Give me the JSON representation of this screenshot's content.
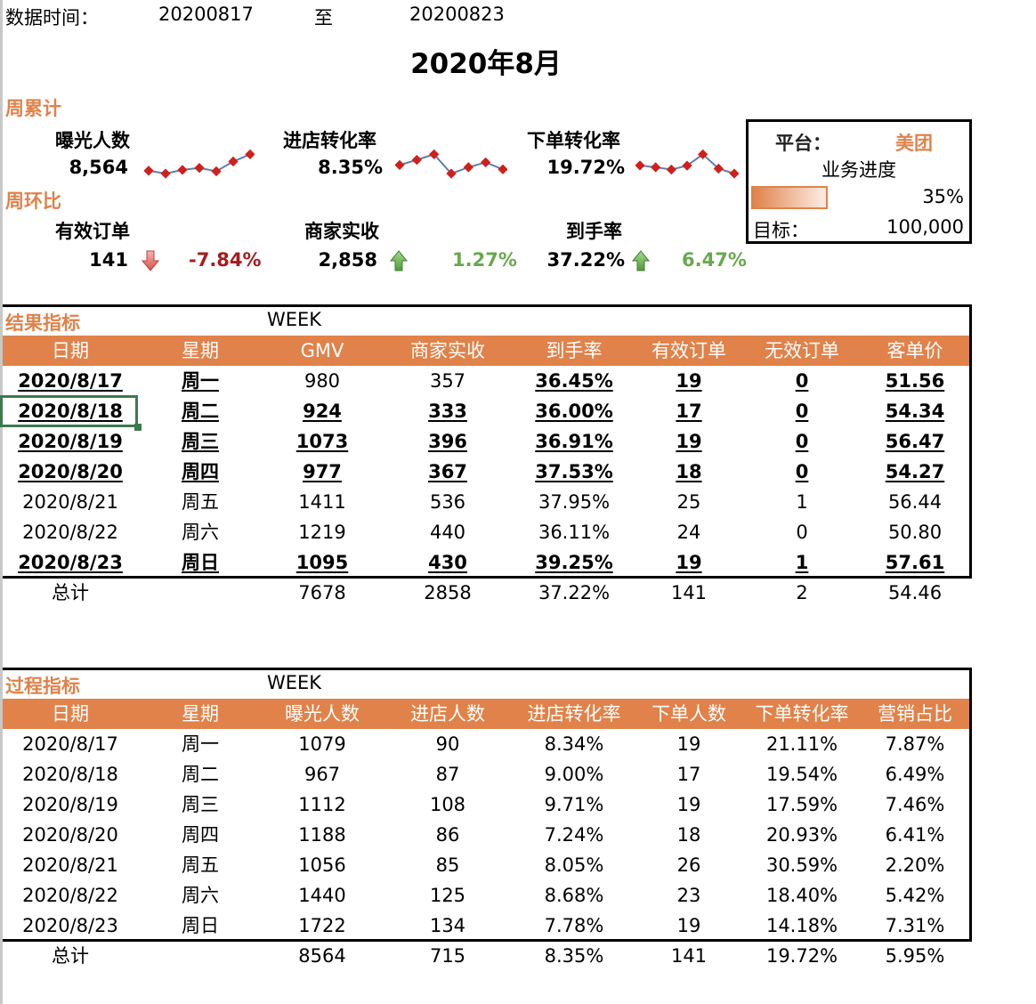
{
  "header": {
    "data_time_label": "数据时间：",
    "from_date": "20200817",
    "to_label": "至",
    "to_date": "20200823",
    "title": "2020年8月"
  },
  "colors": {
    "accent_orange": "#e0824a",
    "negative_red": "#a61c1c",
    "positive_green": "#6aa84f",
    "selection_green": "#3c7a4f",
    "sparkline_line": "#5b7fb5",
    "sparkline_marker": "#d0201c"
  },
  "weekly_cumulative": {
    "section_title": "周累计",
    "kpis": [
      {
        "label": "曝光人数",
        "value": "8,564",
        "sparkline": [
          1079,
          967,
          1112,
          1188,
          1056,
          1440,
          1722
        ]
      },
      {
        "label": "进店转化率",
        "value": "8.35%",
        "sparkline": [
          8.34,
          9.0,
          9.71,
          7.24,
          8.05,
          8.68,
          7.78
        ]
      },
      {
        "label": "下单转化率",
        "value": "19.72%",
        "sparkline": [
          21.11,
          19.54,
          17.59,
          20.93,
          30.59,
          18.4,
          14.18
        ]
      }
    ]
  },
  "week_over_week": {
    "section_title": "周环比",
    "kpis": [
      {
        "label": "有效订单",
        "value": "141",
        "trend": "down",
        "trend_icon": "arrow-down-icon",
        "change": "-7.84%"
      },
      {
        "label": "商家实收",
        "value": "2,858",
        "trend": "up",
        "trend_icon": "arrow-up-icon",
        "change": "1.27%"
      },
      {
        "label": "到手率",
        "value": "37.22%",
        "trend": "up",
        "trend_icon": "arrow-up-icon",
        "change": "6.47%"
      }
    ]
  },
  "platform_box": {
    "platform_label": "平台：",
    "platform_value": "美团",
    "progress_title": "业务进度",
    "progress_percent": "35%",
    "target_label": "目标：",
    "target_value": "100,000"
  },
  "results_table": {
    "title": "结果指标",
    "week_label": "WEEK",
    "columns": [
      "日期",
      "星期",
      "GMV",
      "商家实收",
      "到手率",
      "有效订单",
      "无效订单",
      "客单价"
    ],
    "rows": [
      {
        "cells": [
          "2020/8/17",
          "周一",
          "980",
          "357",
          "36.45%",
          "19",
          "0",
          "51.56"
        ],
        "bold": [
          true,
          true,
          false,
          false,
          true,
          true,
          true,
          true
        ]
      },
      {
        "cells": [
          "2020/8/18",
          "周二",
          "924",
          "333",
          "36.00%",
          "17",
          "0",
          "54.34"
        ],
        "bold": [
          true,
          true,
          true,
          true,
          true,
          true,
          true,
          true
        ]
      },
      {
        "cells": [
          "2020/8/19",
          "周三",
          "1073",
          "396",
          "36.91%",
          "19",
          "0",
          "56.47"
        ],
        "bold": [
          true,
          true,
          true,
          true,
          true,
          true,
          true,
          true
        ]
      },
      {
        "cells": [
          "2020/8/20",
          "周四",
          "977",
          "367",
          "37.53%",
          "18",
          "0",
          "54.27"
        ],
        "bold": [
          true,
          true,
          true,
          true,
          true,
          true,
          true,
          true
        ]
      },
      {
        "cells": [
          "2020/8/21",
          "周五",
          "1411",
          "536",
          "37.95%",
          "25",
          "1",
          "56.44"
        ],
        "bold": [
          false,
          false,
          false,
          false,
          false,
          false,
          false,
          false
        ]
      },
      {
        "cells": [
          "2020/8/22",
          "周六",
          "1219",
          "440",
          "36.11%",
          "24",
          "0",
          "50.80"
        ],
        "bold": [
          false,
          false,
          false,
          false,
          false,
          false,
          false,
          false
        ]
      },
      {
        "cells": [
          "2020/8/23",
          "周日",
          "1095",
          "430",
          "39.25%",
          "19",
          "1",
          "57.61"
        ],
        "bold": [
          true,
          true,
          true,
          true,
          true,
          true,
          true,
          true
        ]
      }
    ],
    "total": [
      "总计",
      "",
      "7678",
      "2858",
      "37.22%",
      "141",
      "2",
      "54.46"
    ],
    "selected_cell": "2020/8/18"
  },
  "process_table": {
    "title": "过程指标",
    "week_label": "WEEK",
    "columns": [
      "日期",
      "星期",
      "曝光人数",
      "进店人数",
      "进店转化率",
      "下单人数",
      "下单转化率",
      "营销占比"
    ],
    "rows": [
      {
        "cells": [
          "2020/8/17",
          "周一",
          "1079",
          "90",
          "8.34%",
          "19",
          "21.11%",
          "7.87%"
        ]
      },
      {
        "cells": [
          "2020/8/18",
          "周二",
          "967",
          "87",
          "9.00%",
          "17",
          "19.54%",
          "6.49%"
        ]
      },
      {
        "cells": [
          "2020/8/19",
          "周三",
          "1112",
          "108",
          "9.71%",
          "19",
          "17.59%",
          "7.46%"
        ]
      },
      {
        "cells": [
          "2020/8/20",
          "周四",
          "1188",
          "86",
          "7.24%",
          "18",
          "20.93%",
          "6.41%"
        ]
      },
      {
        "cells": [
          "2020/8/21",
          "周五",
          "1056",
          "85",
          "8.05%",
          "26",
          "30.59%",
          "2.20%"
        ]
      },
      {
        "cells": [
          "2020/8/22",
          "周六",
          "1440",
          "125",
          "8.68%",
          "23",
          "18.40%",
          "5.42%"
        ]
      },
      {
        "cells": [
          "2020/8/23",
          "周日",
          "1722",
          "134",
          "7.78%",
          "19",
          "14.18%",
          "7.31%"
        ]
      }
    ],
    "total": [
      "总计",
      "",
      "8564",
      "715",
      "8.35%",
      "141",
      "19.72%",
      "5.95%"
    ]
  }
}
